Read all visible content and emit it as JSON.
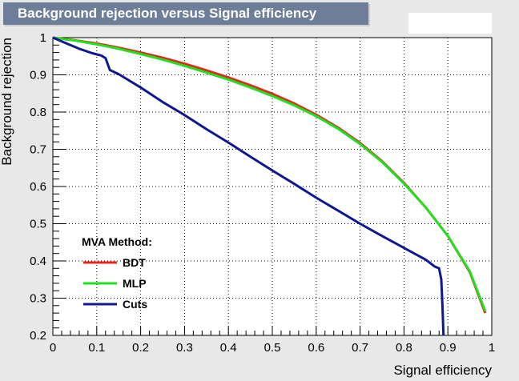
{
  "chart_data": {
    "type": "line",
    "title": "Background rejection versus Signal efficiency",
    "xlabel": "Signal efficiency",
    "ylabel": "Background rejection",
    "xlim": [
      0,
      1
    ],
    "ylim": [
      0.2,
      1
    ],
    "xticks": [
      "0",
      "0.1",
      "0.2",
      "0.3",
      "0.4",
      "0.5",
      "0.6",
      "0.7",
      "0.8",
      "0.9",
      "1"
    ],
    "yticks": [
      "0.2",
      "0.3",
      "0.4",
      "0.5",
      "0.6",
      "0.7",
      "0.8",
      "0.9",
      "1"
    ],
    "grid": true,
    "legend": {
      "title": "MVA Method:",
      "position": "bottom-left",
      "entries": [
        "BDT",
        "MLP",
        "Cuts"
      ]
    },
    "series": [
      {
        "name": "BDT",
        "color": "#e8251a",
        "x": [
          0.0,
          0.05,
          0.1,
          0.15,
          0.2,
          0.25,
          0.3,
          0.35,
          0.4,
          0.45,
          0.5,
          0.55,
          0.6,
          0.65,
          0.7,
          0.75,
          0.8,
          0.85,
          0.9,
          0.95,
          0.985
        ],
        "y": [
          1.0,
          0.993,
          0.984,
          0.973,
          0.96,
          0.946,
          0.93,
          0.912,
          0.893,
          0.872,
          0.849,
          0.823,
          0.793,
          0.758,
          0.717,
          0.668,
          0.61,
          0.543,
          0.467,
          0.37,
          0.26
        ]
      },
      {
        "name": "MLP",
        "color": "#20e020",
        "x": [
          0.0,
          0.05,
          0.1,
          0.15,
          0.2,
          0.25,
          0.3,
          0.35,
          0.4,
          0.45,
          0.5,
          0.55,
          0.6,
          0.65,
          0.7,
          0.75,
          0.8,
          0.85,
          0.9,
          0.95,
          0.985
        ],
        "y": [
          1.0,
          0.992,
          0.982,
          0.97,
          0.956,
          0.941,
          0.924,
          0.906,
          0.887,
          0.866,
          0.843,
          0.818,
          0.789,
          0.755,
          0.714,
          0.666,
          0.608,
          0.543,
          0.467,
          0.372,
          0.265
        ]
      },
      {
        "name": "Cuts",
        "color": "#101890",
        "x": [
          0.0,
          0.03,
          0.06,
          0.09,
          0.11,
          0.12,
          0.13,
          0.15,
          0.2,
          0.25,
          0.3,
          0.35,
          0.4,
          0.45,
          0.5,
          0.55,
          0.6,
          0.65,
          0.7,
          0.75,
          0.8,
          0.85,
          0.87,
          0.88,
          0.885,
          0.888,
          0.89
        ],
        "y": [
          1.0,
          0.985,
          0.97,
          0.958,
          0.952,
          0.945,
          0.913,
          0.902,
          0.866,
          0.827,
          0.792,
          0.754,
          0.718,
          0.68,
          0.643,
          0.607,
          0.57,
          0.535,
          0.5,
          0.467,
          0.435,
          0.403,
          0.385,
          0.38,
          0.35,
          0.27,
          0.2
        ]
      }
    ]
  }
}
